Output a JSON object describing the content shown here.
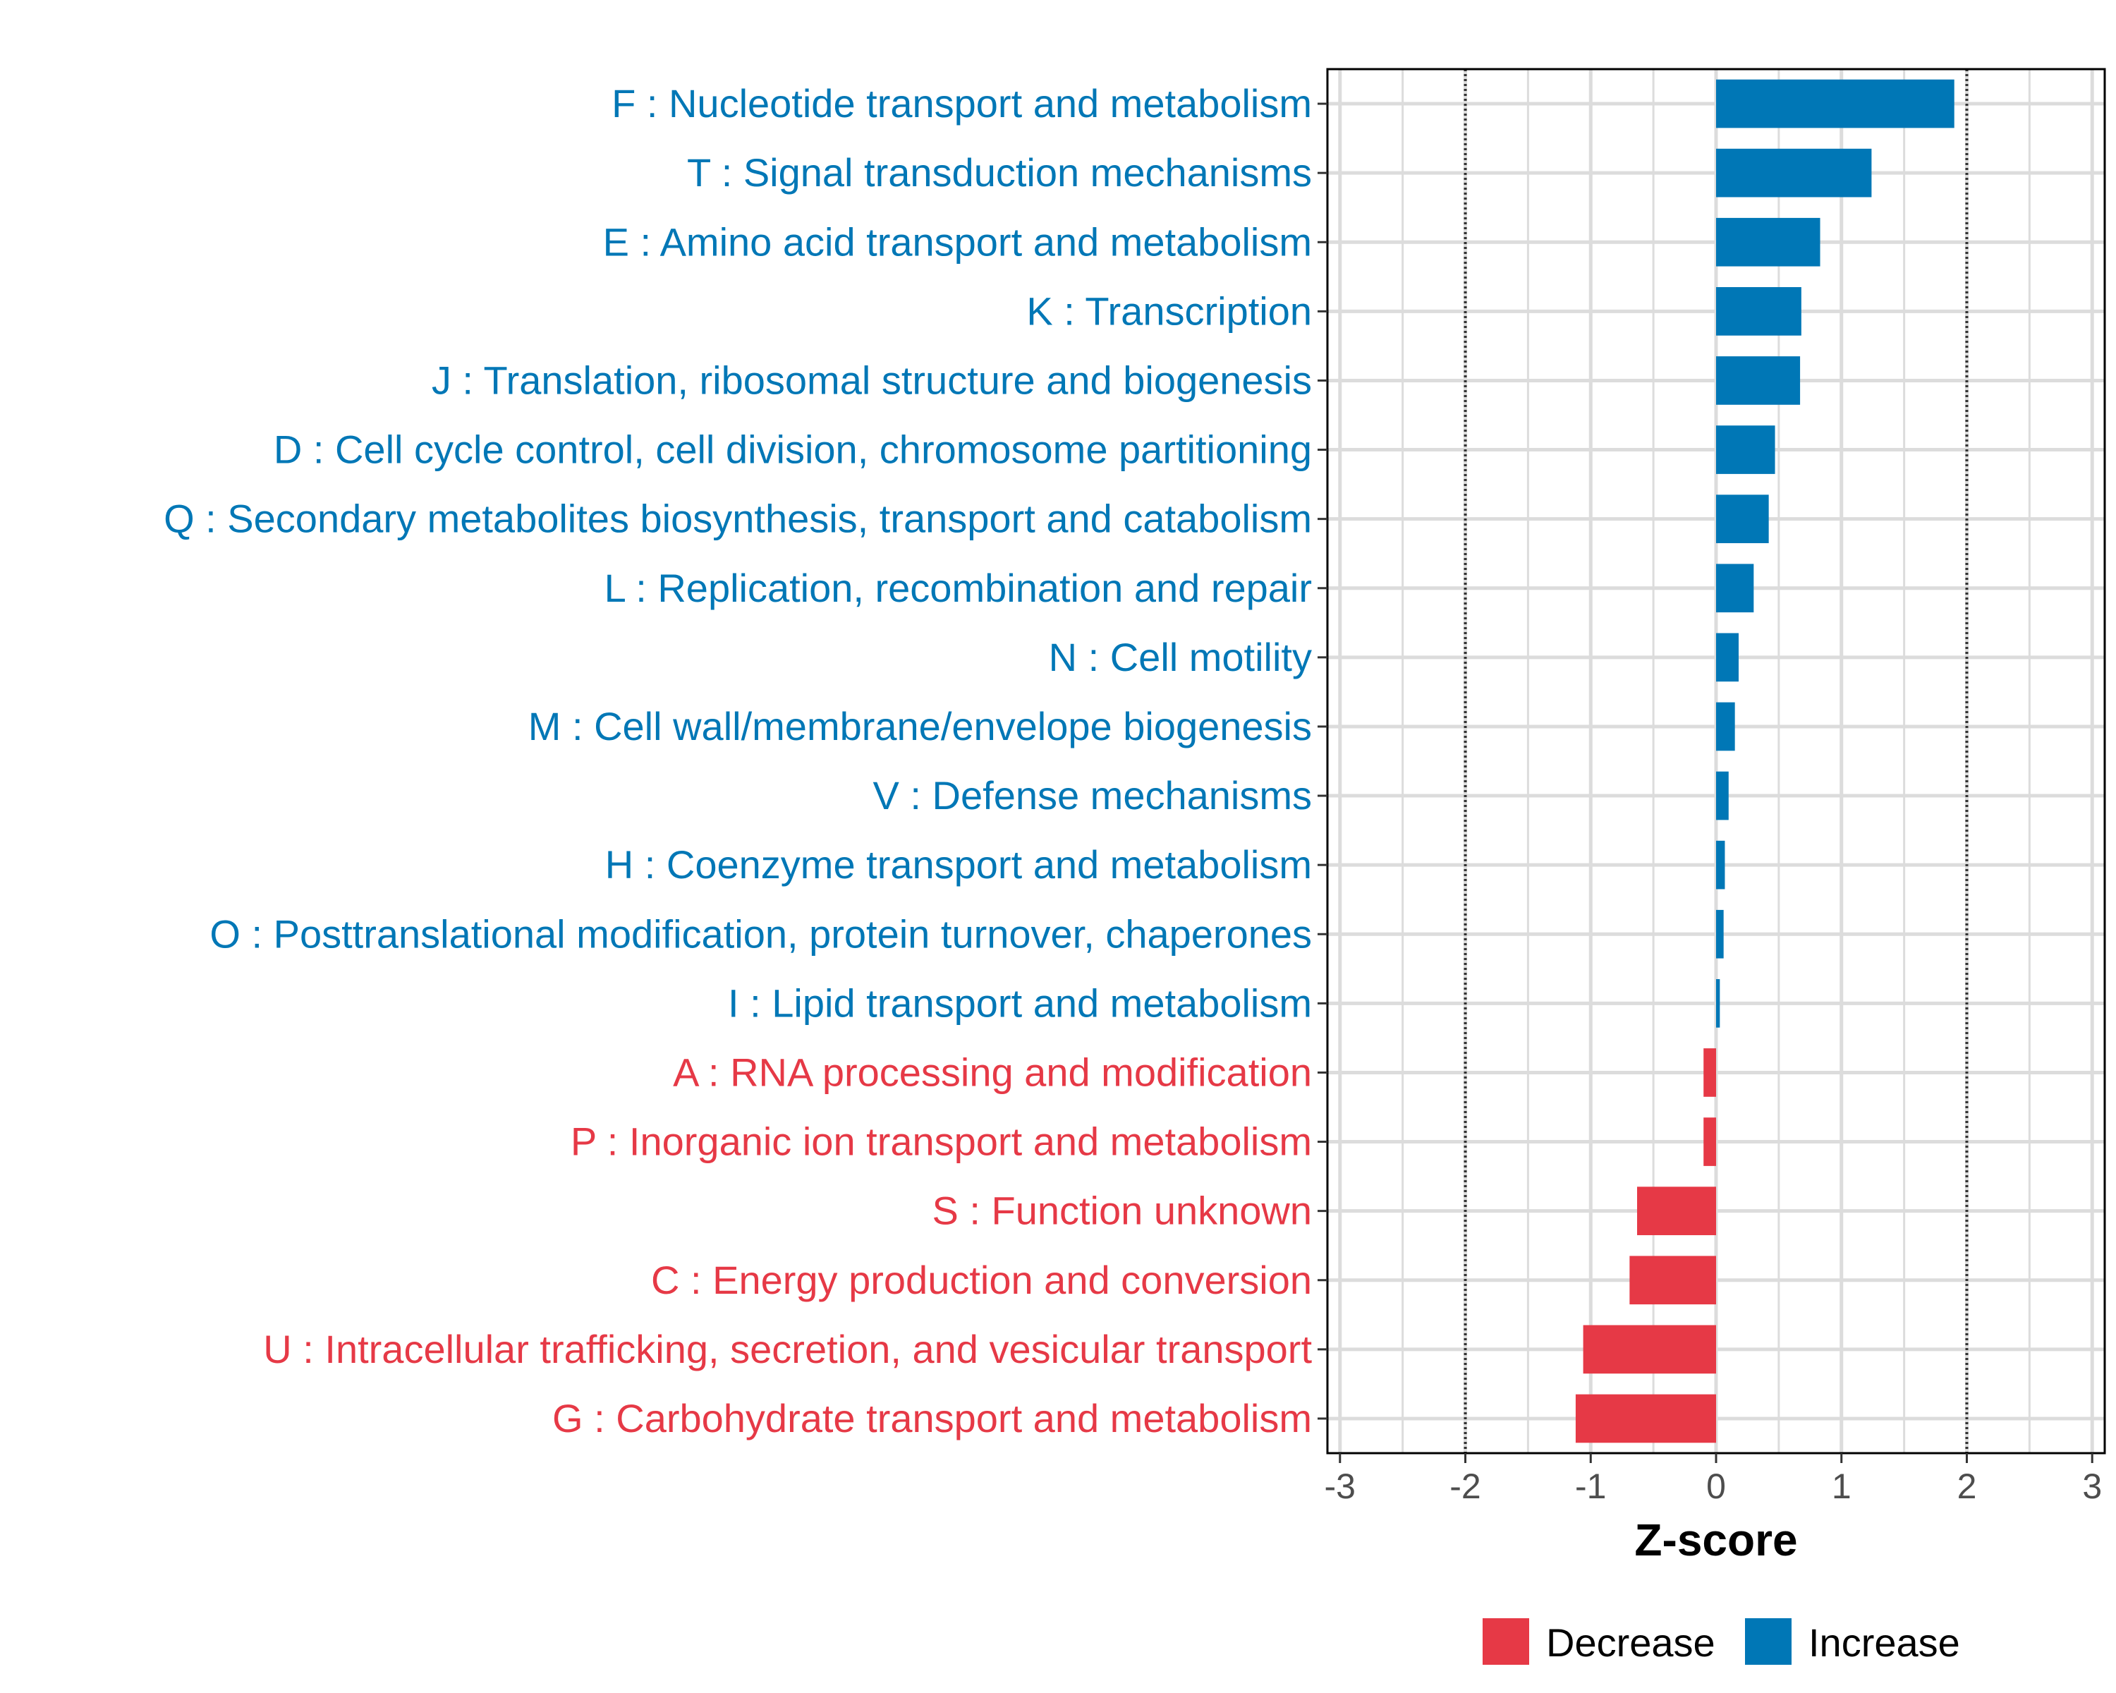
{
  "chart_data": {
    "type": "bar",
    "orientation": "horizontal",
    "title": "",
    "xlabel": "Z-score",
    "ylabel": "",
    "xlim": [
      -3.1,
      3.1
    ],
    "xticks": [
      -3,
      -2,
      -1,
      0,
      1,
      2,
      3
    ],
    "tick_labels": [
      "-3",
      "-2",
      "-1",
      "0",
      "1",
      "2",
      "3"
    ],
    "reference_lines": [
      -2,
      2
    ],
    "grid": true,
    "colors": {
      "Decrease": "#e63946",
      "Increase": "#0077b6"
    },
    "categories": [
      "F : Nucleotide transport and metabolism",
      "T : Signal transduction mechanisms",
      "E : Amino acid transport and metabolism",
      "K : Transcription",
      "J : Translation, ribosomal structure and biogenesis",
      "D : Cell cycle control, cell division, chromosome partitioning",
      "Q : Secondary metabolites biosynthesis, transport and catabolism",
      "L : Replication, recombination and repair",
      "N : Cell motility",
      "M : Cell wall/membrane/envelope biogenesis",
      "V : Defense mechanisms",
      "H : Coenzyme transport and metabolism",
      "O : Posttranslational modification, protein turnover, chaperones",
      "I : Lipid transport and metabolism",
      "A : RNA processing and modification",
      "P : Inorganic ion transport and metabolism",
      "S : Function unknown",
      "C : Energy production and conversion",
      "U : Intracellular trafficking, secretion, and vesicular transport",
      "G : Carbohydrate transport and metabolism"
    ],
    "values": [
      1.9,
      1.24,
      0.83,
      0.68,
      0.67,
      0.47,
      0.42,
      0.3,
      0.18,
      0.15,
      0.1,
      0.07,
      0.06,
      0.03,
      -0.1,
      -0.1,
      -0.63,
      -0.69,
      -1.06,
      -1.12
    ],
    "groups": [
      "Increase",
      "Increase",
      "Increase",
      "Increase",
      "Increase",
      "Increase",
      "Increase",
      "Increase",
      "Increase",
      "Increase",
      "Increase",
      "Increase",
      "Increase",
      "Increase",
      "Decrease",
      "Decrease",
      "Decrease",
      "Decrease",
      "Decrease",
      "Decrease"
    ],
    "legend": {
      "position": "bottom",
      "entries": [
        "Decrease",
        "Increase"
      ]
    }
  }
}
